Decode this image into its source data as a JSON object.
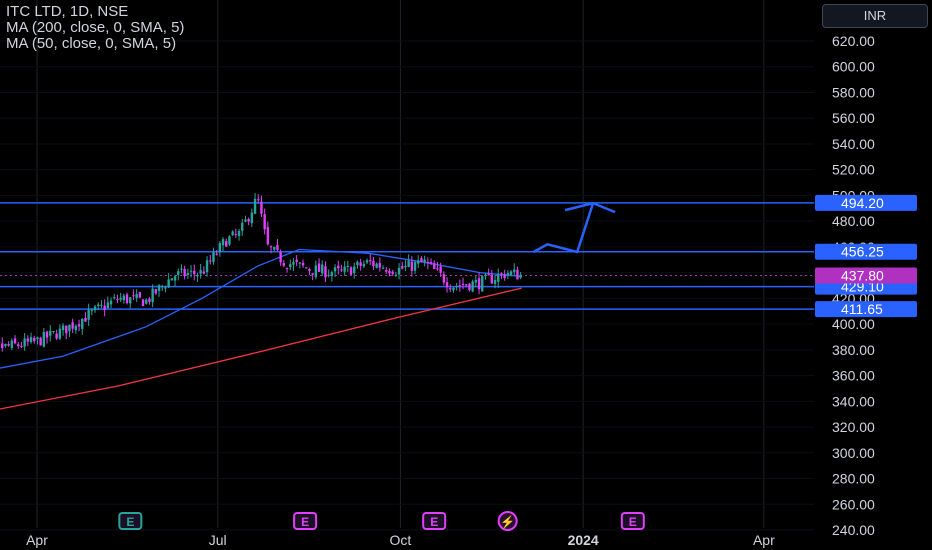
{
  "header": {
    "symbol_line": "ITC LTD, 1D, NSE",
    "ma_lines": [
      "MA (200, close, 0, SMA, 5)",
      "MA (50, close, 0, SMA, 5)"
    ]
  },
  "currency_button": "INR",
  "colors": {
    "background": "#000000",
    "up": "#26a69a",
    "down": "#e040fb",
    "ma200": "#f23645",
    "ma50": "#2962ff",
    "level": "#2962ff",
    "price_badge": "#b030c0"
  },
  "chart_data": {
    "type": "candlestick",
    "symbol": "ITC LTD",
    "interval": "1D",
    "exchange": "NSE",
    "ylim": [
      240,
      630
    ],
    "y_ticks": [
      240,
      260,
      280,
      300,
      320,
      340,
      360,
      380,
      400,
      420,
      440,
      460,
      480,
      500,
      520,
      540,
      560,
      580,
      600,
      620
    ],
    "x_ticks": [
      "Apr",
      "Jul",
      "Oct",
      "2024",
      "Apr"
    ],
    "horizontal_levels": [
      494.2,
      456.25,
      429.1,
      411.65
    ],
    "last_price": 437.8,
    "price_path": [
      {
        "date": "2023-02-28",
        "close": 385
      },
      {
        "date": "2023-03-15",
        "close": 382
      },
      {
        "date": "2023-03-31",
        "close": 386
      },
      {
        "date": "2023-04-14",
        "close": 395
      },
      {
        "date": "2023-04-28",
        "close": 408
      },
      {
        "date": "2023-05-12",
        "close": 420
      },
      {
        "date": "2023-05-26",
        "close": 418
      },
      {
        "date": "2023-06-09",
        "close": 438
      },
      {
        "date": "2023-06-23",
        "close": 440
      },
      {
        "date": "2023-07-05",
        "close": 465
      },
      {
        "date": "2023-07-12",
        "close": 470
      },
      {
        "date": "2023-07-21",
        "close": 498
      },
      {
        "date": "2023-07-26",
        "close": 460
      },
      {
        "date": "2023-08-04",
        "close": 448
      },
      {
        "date": "2023-08-18",
        "close": 442
      },
      {
        "date": "2023-09-01",
        "close": 440
      },
      {
        "date": "2023-09-15",
        "close": 448
      },
      {
        "date": "2023-09-29",
        "close": 442
      },
      {
        "date": "2023-10-13",
        "close": 448
      },
      {
        "date": "2023-10-27",
        "close": 430
      },
      {
        "date": "2023-11-10",
        "close": 432
      },
      {
        "date": "2023-11-24",
        "close": 440
      },
      {
        "date": "2023-12-01",
        "close": 437.8
      }
    ],
    "ma50_path": [
      {
        "date": "2023-02-28",
        "value": 362
      },
      {
        "date": "2023-04-14",
        "value": 375
      },
      {
        "date": "2023-05-26",
        "value": 398
      },
      {
        "date": "2023-06-23",
        "value": 420
      },
      {
        "date": "2023-07-21",
        "value": 445
      },
      {
        "date": "2023-08-11",
        "value": 458
      },
      {
        "date": "2023-09-15",
        "value": 455
      },
      {
        "date": "2023-10-13",
        "value": 448
      },
      {
        "date": "2023-11-10",
        "value": 440
      },
      {
        "date": "2023-12-01",
        "value": 437
      }
    ],
    "ma200_path": [
      {
        "date": "2023-02-28",
        "value": 330
      },
      {
        "date": "2023-05-12",
        "value": 352
      },
      {
        "date": "2023-07-21",
        "value": 378
      },
      {
        "date": "2023-09-29",
        "value": 405
      },
      {
        "date": "2023-12-01",
        "value": 428
      }
    ],
    "projection_path": [
      {
        "date": "2023-12-07",
        "value": 456
      },
      {
        "date": "2023-12-14",
        "value": 462
      },
      {
        "date": "2023-12-29",
        "value": 456
      },
      {
        "date": "2024-01-06",
        "value": 494
      }
    ],
    "event_markers": [
      {
        "label": "E",
        "date": "2023-05-18",
        "color": "#26a69a"
      },
      {
        "label": "E",
        "date": "2023-08-14",
        "color": "#e040fb"
      },
      {
        "label": "E",
        "date": "2023-10-18",
        "color": "#e040fb"
      },
      {
        "label": "⚡",
        "date": "2023-11-24",
        "color": "#e040fb"
      },
      {
        "label": "E",
        "date": "2024-01-26",
        "color": "#e040fb"
      }
    ]
  },
  "price_axis_labels": {
    "level_1": "494.20",
    "level_2": "456.25",
    "last": "437.80",
    "level_3": "429.10",
    "level_4": "411.65"
  }
}
